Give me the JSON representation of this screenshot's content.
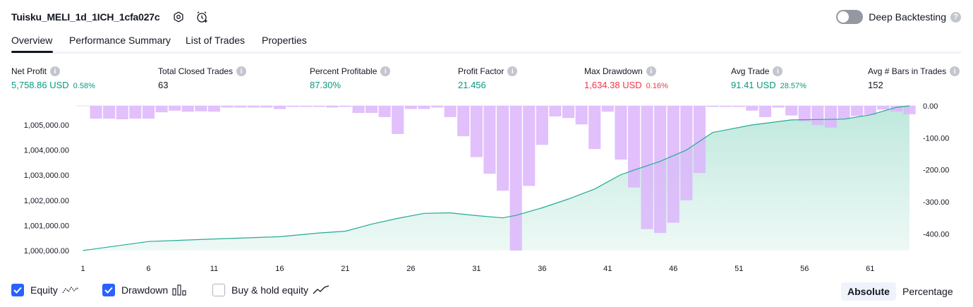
{
  "header": {
    "strategy_title": "Tuisku_MELI_1d_1ICH_1cfa027c",
    "deep_backtesting_label": "Deep Backtesting",
    "help_glyph": "?",
    "icons": [
      "settings-gear-icon",
      "alarm-clock-add-icon"
    ]
  },
  "tabs": [
    "Overview",
    "Performance Summary",
    "List of Trades",
    "Properties"
  ],
  "metrics": {
    "net_profit": {
      "label": "Net Profit",
      "value": "5,758.86 USD",
      "pct": "0.58%"
    },
    "total_closed_trades": {
      "label": "Total Closed Trades",
      "value": "63"
    },
    "percent_profitable": {
      "label": "Percent Profitable",
      "value": "87.30%"
    },
    "profit_factor": {
      "label": "Profit Factor",
      "value": "21.456"
    },
    "max_drawdown": {
      "label": "Max Drawdown",
      "value": "1,634.38 USD",
      "pct": "0.16%"
    },
    "avg_trade": {
      "label": "Avg Trade",
      "value": "91.41 USD",
      "pct": "28.57%"
    },
    "avg_bars": {
      "label": "Avg # Bars in Trades",
      "value": "152"
    },
    "info_glyph": "i"
  },
  "legend": {
    "equity": "Equity",
    "drawdown": "Drawdown",
    "buy_hold": "Buy & hold equity",
    "equity_checked": true,
    "drawdown_checked": true,
    "buy_hold_checked": false
  },
  "view_toggle": {
    "absolute": "Absolute",
    "percentage": "Percentage",
    "selected": "Absolute"
  },
  "colors": {
    "equity_line": "#22ab94",
    "equity_fill_top": "#bfe8dd",
    "equity_fill_bottom": "#eef9f6",
    "drawdown_bar": "#dcb5fb",
    "accent": "#2962ff",
    "positive": "#089981",
    "negative": "#f23645"
  },
  "chart_data": {
    "type": "line+bar",
    "x_ticks": [
      "1",
      "6",
      "11",
      "16",
      "21",
      "26",
      "31",
      "36",
      "41",
      "46",
      "51",
      "56",
      "61"
    ],
    "x_range": [
      1,
      64
    ],
    "equity_axis": {
      "ticks": [
        "1,000,000.00",
        "1,001,000.00",
        "1,002,000.00",
        "1,003,000.00",
        "1,004,000.00",
        "1,005,000.00"
      ],
      "range": [
        1000000,
        1005759
      ]
    },
    "drawdown_axis": {
      "ticks": [
        "0.00",
        "-100.00",
        "-200.00",
        "-300.00",
        "-400.00"
      ],
      "range": [
        -452,
        0
      ]
    },
    "series": [
      {
        "name": "Equity",
        "points": [
          [
            1,
            1000000
          ],
          [
            6,
            1000360
          ],
          [
            11,
            1000460
          ],
          [
            16,
            1000550
          ],
          [
            19,
            1000700
          ],
          [
            21,
            1000770
          ],
          [
            23,
            1001050
          ],
          [
            25,
            1001280
          ],
          [
            27,
            1001480
          ],
          [
            29,
            1001500
          ],
          [
            31,
            1001390
          ],
          [
            33,
            1001300
          ],
          [
            34,
            1001400
          ],
          [
            36,
            1001700
          ],
          [
            38,
            1002050
          ],
          [
            40,
            1002450
          ],
          [
            42,
            1003020
          ],
          [
            43,
            1003200
          ],
          [
            45,
            1003550
          ],
          [
            47,
            1004000
          ],
          [
            49,
            1004700
          ],
          [
            52,
            1005000
          ],
          [
            55,
            1005200
          ],
          [
            59,
            1005230
          ],
          [
            61,
            1005400
          ],
          [
            63,
            1005700
          ],
          [
            64,
            1005759
          ]
        ]
      },
      {
        "name": "Drawdown",
        "bars": [
          [
            2,
            -40
          ],
          [
            3,
            -40
          ],
          [
            4,
            -42
          ],
          [
            5,
            -40
          ],
          [
            6,
            -40
          ],
          [
            7,
            -20
          ],
          [
            8,
            -15
          ],
          [
            9,
            -18
          ],
          [
            10,
            -17
          ],
          [
            11,
            -18
          ],
          [
            12,
            -5
          ],
          [
            13,
            -5
          ],
          [
            14,
            -5
          ],
          [
            15,
            -5
          ],
          [
            16,
            -10
          ],
          [
            17,
            -3
          ],
          [
            18,
            -3
          ],
          [
            19,
            -3
          ],
          [
            20,
            -5
          ],
          [
            21,
            -3
          ],
          [
            22,
            -22
          ],
          [
            23,
            -22
          ],
          [
            24,
            -35
          ],
          [
            25,
            -88
          ],
          [
            26,
            -10
          ],
          [
            27,
            -10
          ],
          [
            28,
            -5
          ],
          [
            29,
            -35
          ],
          [
            30,
            -95
          ],
          [
            31,
            -160
          ],
          [
            32,
            -212
          ],
          [
            33,
            -265
          ],
          [
            34,
            -452
          ],
          [
            35,
            -250
          ],
          [
            36,
            -122
          ],
          [
            37,
            -33
          ],
          [
            38,
            -38
          ],
          [
            39,
            -58
          ],
          [
            40,
            -135
          ],
          [
            41,
            -18
          ],
          [
            42,
            -168
          ],
          [
            43,
            -255
          ],
          [
            44,
            -385
          ],
          [
            45,
            -397
          ],
          [
            46,
            -365
          ],
          [
            47,
            -295
          ],
          [
            48,
            -210
          ],
          [
            49,
            -3
          ],
          [
            50,
            -3
          ],
          [
            51,
            -3
          ],
          [
            52,
            -15
          ],
          [
            53,
            -35
          ],
          [
            54,
            -5
          ],
          [
            55,
            -30
          ],
          [
            56,
            -48
          ],
          [
            57,
            -60
          ],
          [
            58,
            -68
          ],
          [
            59,
            -42
          ],
          [
            60,
            -32
          ],
          [
            61,
            -28
          ],
          [
            62,
            -12
          ],
          [
            63,
            -18
          ],
          [
            64,
            -26
          ]
        ]
      }
    ]
  }
}
